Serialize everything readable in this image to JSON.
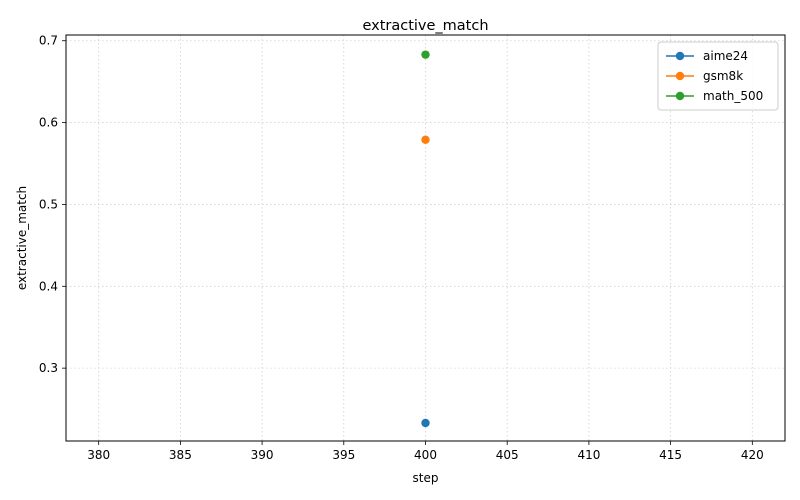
{
  "chart_data": {
    "type": "line",
    "title": "extractive_match",
    "xlabel": "step",
    "ylabel": "extractive_match",
    "xlim": [
      378,
      422
    ],
    "ylim": [
      0.211,
      0.707
    ],
    "xticks": [
      380,
      385,
      390,
      395,
      400,
      405,
      410,
      415,
      420
    ],
    "yticks": [
      0.3,
      0.4,
      0.5,
      0.6,
      0.7
    ],
    "xtick_labels": [
      "380",
      "385",
      "390",
      "395",
      "400",
      "405",
      "410",
      "415",
      "420"
    ],
    "ytick_labels": [
      "0.3",
      "0.4",
      "0.5",
      "0.6",
      "0.7"
    ],
    "grid": true,
    "legend_position": "top-right",
    "series": [
      {
        "name": "aime24",
        "color": "#1f77b4",
        "x": [
          400
        ],
        "y": [
          0.233
        ]
      },
      {
        "name": "gsm8k",
        "color": "#ff7f0e",
        "x": [
          400
        ],
        "y": [
          0.579
        ]
      },
      {
        "name": "math_500",
        "color": "#2ca02c",
        "x": [
          400
        ],
        "y": [
          0.683
        ]
      }
    ]
  }
}
